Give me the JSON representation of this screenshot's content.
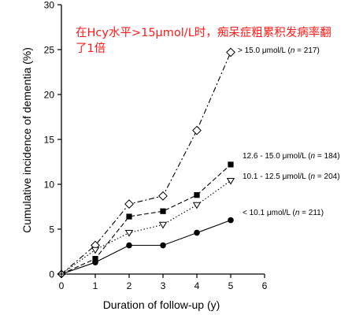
{
  "annotation": {
    "line1": "在Hcy水平>15μmol/L时，痴呆症粗累积发病率翻",
    "line2": "了1倍",
    "color": "#ff1a1a"
  },
  "chart_data": {
    "type": "line",
    "xlabel": "Duration of follow-up (y)",
    "ylabel": "Cumulative incidence of dementia (%)",
    "xlim": [
      0,
      6
    ],
    "ylim": [
      0,
      30
    ],
    "xticks": [
      0,
      1,
      2,
      3,
      4,
      5,
      6
    ],
    "yticks": [
      0,
      5,
      10,
      15,
      20,
      25,
      30
    ],
    "grid": false,
    "x": [
      0,
      1,
      2,
      3,
      4,
      5
    ],
    "series": [
      {
        "name": "> 15.0 μmol/L (n = 217)",
        "label_main": "> 15.0 μmol/L (",
        "label_n": "n",
        "label_tail": " = 217)",
        "values": [
          0,
          3.2,
          7.8,
          8.7,
          16.0,
          24.7
        ],
        "marker": "diamond-open",
        "dash": "7 3 2 3"
      },
      {
        "name": "12.6 - 15.0 μmol/L (n = 184)",
        "label_main": "12.6 - 15.0 μmol/L (",
        "label_n": "n",
        "label_tail": " = 184)",
        "values": [
          0,
          1.7,
          6.4,
          7.0,
          8.8,
          12.2
        ],
        "marker": "square-filled",
        "dash": "6 3"
      },
      {
        "name": "10.1 - 12.5 μmol/L (n = 204)",
        "label_main": "10.1 - 12.5 μmol/L (",
        "label_n": "n",
        "label_tail": " = 204)",
        "values": [
          0,
          2.7,
          4.6,
          5.5,
          7.7,
          10.4
        ],
        "marker": "triangle-open",
        "dash": "1.5 2.5"
      },
      {
        "name": "< 10.1 μmol/L (n = 211)",
        "label_main": "< 10.1 μmol/L (",
        "label_n": "n",
        "label_tail": " = 211)",
        "values": [
          0,
          1.3,
          3.2,
          3.2,
          4.6,
          6.0
        ],
        "marker": "circle-filled",
        "dash": ""
      }
    ]
  }
}
